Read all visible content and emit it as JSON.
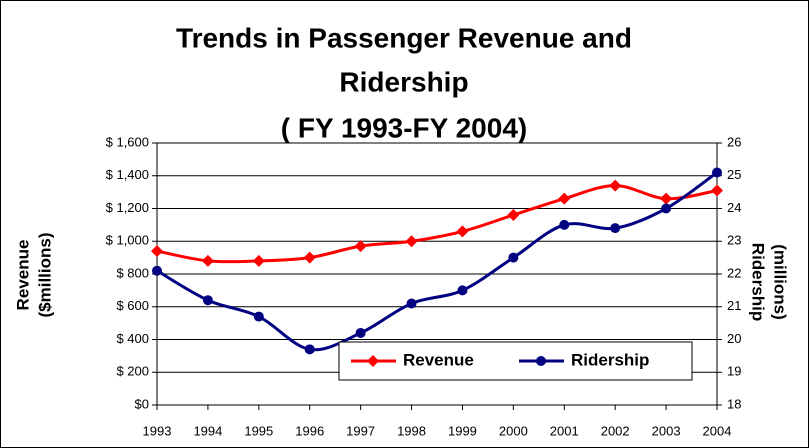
{
  "chart_data": {
    "type": "line",
    "title": [
      "Trends in Passenger Revenue and",
      "Ridership",
      "( FY 1993-FY 2004)"
    ],
    "y_label": [
      "Revenue",
      "($millions)"
    ],
    "y2_label": [
      "Ridership",
      "(millions)"
    ],
    "categories": [
      "1993",
      "1994",
      "1995",
      "1996",
      "1997",
      "1998",
      "1999",
      "2000",
      "2001",
      "2002",
      "2003",
      "2004"
    ],
    "series": [
      {
        "name": "Revenue",
        "color": "#ff0000",
        "marker": "diamond",
        "values": [
          940,
          880,
          880,
          900,
          970,
          1000,
          1060,
          1160,
          1260,
          1340,
          1260,
          1310
        ]
      },
      {
        "name": "Ridership",
        "color": "#000080",
        "marker": "circle",
        "axis": "y2",
        "values": [
          22.1,
          21.2,
          20.7,
          19.7,
          20.2,
          21.1,
          21.5,
          22.5,
          23.5,
          23.4,
          24.0,
          25.1
        ]
      }
    ],
    "ylim": [
      0,
      1600
    ],
    "yticks": [
      {
        "value": 0,
        "label": "$0"
      },
      {
        "value": 200,
        "label": "$ 200"
      },
      {
        "value": 400,
        "label": "$ 400"
      },
      {
        "value": 600,
        "label": "$ 600"
      },
      {
        "value": 800,
        "label": "$ 800"
      },
      {
        "value": 1000,
        "label": "$ 1,000"
      },
      {
        "value": 1200,
        "label": "$ 1,200"
      },
      {
        "value": 1400,
        "label": "$ 1,400"
      },
      {
        "value": 1600,
        "label": "$ 1,600"
      }
    ],
    "y2lim": [
      18,
      26
    ],
    "y2ticks": [
      18,
      19,
      20,
      21,
      22,
      23,
      24,
      25,
      26
    ],
    "grid": true,
    "legend": "lower right"
  }
}
